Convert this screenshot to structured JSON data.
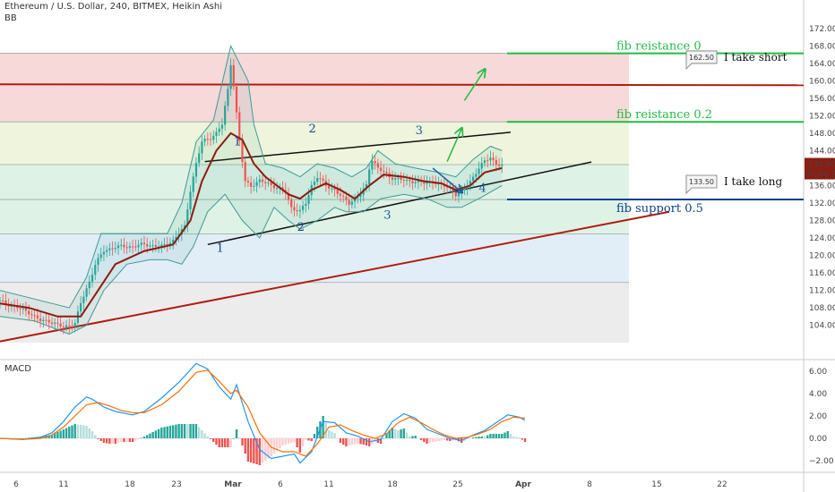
{
  "header": {
    "symbol_line": "Ethereum / U.S. Dollar, 240, BITMEX, Heikin Ashi",
    "indicator": "BB"
  },
  "macd_label": "MACD",
  "colors": {
    "fib_top_band": "#f7d9d9",
    "fib_mid_band": "#eef5dc",
    "fib_low_band": "#dff2e6",
    "fib_lower_band": "#e2eef7",
    "fib_bottom_band": "#ececec",
    "green_level": "#22bb44",
    "blue_level": "#0d3f8c",
    "red_line": "#b01e10",
    "ma_line": "#8b1d12",
    "bb_line": "#3d9a96",
    "candle_up": "#26a69a",
    "candle_down": "#ef5350",
    "macd_line": "#2196f3",
    "signal_line": "#ff6d00"
  },
  "chart_data": [
    {
      "type": "candlestick",
      "title": "Ethereum / U.S. Dollar, 240, BITMEX, Heikin Ashi",
      "ylim": [
        100,
        174
      ],
      "y_ticks": [
        104,
        108,
        112,
        116,
        120,
        124,
        128,
        132,
        136,
        140,
        144,
        148,
        152,
        156,
        160,
        164,
        168,
        172
      ],
      "x_ticks": [
        "6",
        "11",
        "18",
        "23",
        "Mar",
        "6",
        "11",
        "18",
        "25",
        "Apr",
        "8",
        "15",
        "22"
      ],
      "last_price": "140.90",
      "countdown": "02:56:28",
      "price_path": [
        [
          0,
          109.5
        ],
        [
          6,
          108
        ],
        [
          10,
          107
        ],
        [
          14,
          105
        ],
        [
          17,
          105
        ],
        [
          22,
          103.5
        ],
        [
          26,
          104.5
        ],
        [
          28,
          109
        ],
        [
          31,
          114
        ],
        [
          33,
          118
        ],
        [
          36,
          121
        ],
        [
          40,
          122
        ],
        [
          45,
          122
        ],
        [
          50,
          122.5
        ],
        [
          56,
          122
        ],
        [
          60,
          123.5
        ],
        [
          64,
          126.5
        ],
        [
          66,
          135
        ],
        [
          68,
          141
        ],
        [
          70,
          146
        ],
        [
          73,
          147
        ],
        [
          75,
          148
        ],
        [
          77,
          150
        ],
        [
          79,
          158
        ],
        [
          80,
          164
        ],
        [
          81,
          159
        ],
        [
          83,
          146
        ],
        [
          85,
          137
        ],
        [
          87,
          136
        ],
        [
          90,
          137
        ],
        [
          93,
          136.5
        ],
        [
          96,
          135.5
        ],
        [
          99,
          134.5
        ],
        [
          101,
          131
        ],
        [
          104,
          130
        ],
        [
          106,
          132
        ],
        [
          108,
          136
        ],
        [
          110,
          138
        ],
        [
          113,
          136
        ],
        [
          116,
          135
        ],
        [
          119,
          133
        ],
        [
          121,
          132
        ],
        [
          123,
          133
        ],
        [
          125,
          134
        ],
        [
          127,
          136
        ],
        [
          128,
          140
        ],
        [
          129,
          142
        ],
        [
          131,
          140
        ],
        [
          133,
          139
        ],
        [
          135,
          138
        ],
        [
          138,
          137.5
        ],
        [
          141,
          137
        ],
        [
          144,
          137
        ],
        [
          147,
          136.5
        ],
        [
          150,
          137
        ],
        [
          153,
          136
        ],
        [
          156,
          135.5
        ],
        [
          158,
          134
        ],
        [
          160,
          134.5
        ],
        [
          162,
          136
        ],
        [
          164,
          138
        ],
        [
          166,
          140
        ],
        [
          168,
          141.5
        ],
        [
          170,
          142.5
        ],
        [
          172,
          141
        ],
        [
          174,
          140.5
        ]
      ],
      "moving_average": [
        [
          0,
          109
        ],
        [
          10,
          108
        ],
        [
          20,
          106
        ],
        [
          28,
          106
        ],
        [
          34,
          112
        ],
        [
          40,
          118
        ],
        [
          50,
          121
        ],
        [
          60,
          122.5
        ],
        [
          66,
          128
        ],
        [
          70,
          137
        ],
        [
          75,
          144
        ],
        [
          80,
          148
        ],
        [
          84,
          146.5
        ],
        [
          88,
          141
        ],
        [
          92,
          138
        ],
        [
          96,
          136
        ],
        [
          100,
          134
        ],
        [
          104,
          133
        ],
        [
          108,
          135
        ],
        [
          113,
          136.5
        ],
        [
          118,
          135
        ],
        [
          123,
          133
        ],
        [
          128,
          136
        ],
        [
          133,
          138.5
        ],
        [
          140,
          138
        ],
        [
          147,
          137
        ],
        [
          153,
          136.5
        ],
        [
          158,
          135
        ],
        [
          163,
          136
        ],
        [
          168,
          139
        ],
        [
          174,
          140
        ]
      ],
      "bollinger_upper": [
        [
          0,
          112
        ],
        [
          12,
          110
        ],
        [
          24,
          108
        ],
        [
          30,
          115
        ],
        [
          35,
          125
        ],
        [
          42,
          125
        ],
        [
          50,
          125
        ],
        [
          58,
          125
        ],
        [
          63,
          132
        ],
        [
          68,
          146
        ],
        [
          74,
          151
        ],
        [
          80,
          168
        ],
        [
          86,
          160
        ],
        [
          88,
          150
        ],
        [
          92,
          141
        ],
        [
          98,
          140
        ],
        [
          104,
          138
        ],
        [
          110,
          141
        ],
        [
          116,
          140
        ],
        [
          122,
          138
        ],
        [
          127,
          140
        ],
        [
          131,
          144
        ],
        [
          137,
          141
        ],
        [
          144,
          140
        ],
        [
          152,
          139
        ],
        [
          158,
          138
        ],
        [
          164,
          142
        ],
        [
          170,
          145
        ],
        [
          174,
          144
        ]
      ],
      "bollinger_lower": [
        [
          0,
          106
        ],
        [
          12,
          105
        ],
        [
          24,
          102
        ],
        [
          30,
          104
        ],
        [
          36,
          112
        ],
        [
          44,
          118
        ],
        [
          52,
          119
        ],
        [
          58,
          119
        ],
        [
          63,
          118
        ],
        [
          67,
          122
        ],
        [
          72,
          130
        ],
        [
          78,
          134
        ],
        [
          84,
          128
        ],
        [
          90,
          124
        ],
        [
          95,
          131
        ],
        [
          100,
          128
        ],
        [
          104,
          126
        ],
        [
          110,
          128
        ],
        [
          116,
          131
        ],
        [
          120,
          130
        ],
        [
          126,
          130
        ],
        [
          132,
          133
        ],
        [
          140,
          134
        ],
        [
          148,
          133
        ],
        [
          155,
          131
        ],
        [
          160,
          131
        ],
        [
          166,
          133
        ],
        [
          174,
          136
        ]
      ],
      "fib_levels": [
        {
          "name": "fib reistance 0",
          "value": 166.3,
          "label": "fib reistance 0",
          "color": "green"
        },
        {
          "name": "fib reistance 0.2",
          "value": 150.6,
          "label": "fib reistance 0.2",
          "color": "green"
        },
        {
          "name": "level_0.382",
          "value": 140.8,
          "label": "",
          "color": "none"
        },
        {
          "name": "fib support 0.5",
          "value": 132.8,
          "label": "fib support 0.5",
          "color": "blue"
        },
        {
          "name": "level_0.618",
          "value": 124.9,
          "label": "",
          "color": "none"
        },
        {
          "name": "level_0.786",
          "value": 113.8,
          "label": "",
          "color": "none"
        }
      ],
      "red_horizontal": 159.2,
      "trendlines": [
        {
          "role": "channel_upper",
          "x1": 71,
          "y1": 141.5,
          "x2": 177,
          "y2": 148.2
        },
        {
          "role": "channel_lower",
          "x1": 72,
          "y1": 122.5,
          "x2": 205,
          "y2": 141.4
        },
        {
          "role": "long_support",
          "x1": 0,
          "y1": 100.3,
          "x2": 232,
          "y2": 130
        }
      ],
      "wave_labels": [
        {
          "text": "1",
          "x": 81,
          "y": 145.2
        },
        {
          "text": "1",
          "x": 75,
          "y": 120.8
        },
        {
          "text": "2",
          "x": 107,
          "y": 148.2
        },
        {
          "text": "2",
          "x": 103,
          "y": 125.6
        },
        {
          "text": "3",
          "x": 144,
          "y": 147.8
        },
        {
          "text": "3",
          "x": 133,
          "y": 128.4
        },
        {
          "text": "4",
          "x": 166,
          "y": 134.6
        }
      ],
      "callouts": [
        {
          "price": "162.50",
          "text": "I take short",
          "x": 196,
          "y": 165
        },
        {
          "price": "133.50",
          "text": "I take long",
          "x": 196,
          "y": 136.5
        }
      ],
      "arrows": [
        {
          "color": "green",
          "x1": 161,
          "y1": 155.5,
          "x2": 168,
          "y2": 162.5
        },
        {
          "color": "green",
          "x1": 155,
          "y1": 141.5,
          "x2": 160,
          "y2": 149
        },
        {
          "color": "blue",
          "x1": 150,
          "y1": 140,
          "x2": 160,
          "y2": 134.5
        }
      ]
    },
    {
      "type": "macd",
      "title": "MACD",
      "ylim": [
        -3,
        7
      ],
      "y_ticks": [
        -2.0,
        0.0,
        2.0,
        4.0,
        6.0
      ],
      "y_tick_labels": [
        "−2.00",
        "0.00",
        "2.00",
        "4.00",
        "6.00"
      ],
      "macd": [
        [
          0,
          0
        ],
        [
          8,
          -0.1
        ],
        [
          14,
          0.1
        ],
        [
          18,
          0.5
        ],
        [
          22,
          1.5
        ],
        [
          26,
          2.8
        ],
        [
          30,
          3.7
        ],
        [
          32,
          3.5
        ],
        [
          36,
          2.8
        ],
        [
          40,
          2.4
        ],
        [
          46,
          2.1
        ],
        [
          50,
          2.4
        ],
        [
          56,
          3.6
        ],
        [
          62,
          5.0
        ],
        [
          68,
          6.7
        ],
        [
          72,
          6.2
        ],
        [
          76,
          4.6
        ],
        [
          80,
          3.5
        ],
        [
          82,
          4.8
        ],
        [
          86,
          1.5
        ],
        [
          90,
          -1.0
        ],
        [
          94,
          -1.8
        ],
        [
          98,
          -1.6
        ],
        [
          102,
          -1.4
        ],
        [
          104,
          -2.2
        ],
        [
          108,
          -1.2
        ],
        [
          112,
          1.5
        ],
        [
          116,
          1.4
        ],
        [
          120,
          0.5
        ],
        [
          124,
          0.2
        ],
        [
          128,
          -0.3
        ],
        [
          132,
          -0.1
        ],
        [
          136,
          1.5
        ],
        [
          140,
          2.2
        ],
        [
          144,
          1.8
        ],
        [
          148,
          0.8
        ],
        [
          152,
          0.4
        ],
        [
          156,
          0.0
        ],
        [
          160,
          -0.2
        ],
        [
          164,
          0.3
        ],
        [
          168,
          0.7
        ],
        [
          172,
          1.4
        ],
        [
          176,
          2.1
        ],
        [
          180,
          1.9
        ],
        [
          182,
          1.6
        ]
      ],
      "signal": [
        [
          0,
          0
        ],
        [
          8,
          -0.1
        ],
        [
          14,
          0
        ],
        [
          18,
          0.3
        ],
        [
          22,
          1.0
        ],
        [
          26,
          2.0
        ],
        [
          30,
          3.0
        ],
        [
          34,
          3.2
        ],
        [
          38,
          2.9
        ],
        [
          42,
          2.5
        ],
        [
          46,
          2.3
        ],
        [
          50,
          2.3
        ],
        [
          56,
          3.0
        ],
        [
          62,
          4.2
        ],
        [
          68,
          5.9
        ],
        [
          72,
          6.1
        ],
        [
          76,
          5.1
        ],
        [
          80,
          4.0
        ],
        [
          82,
          4.3
        ],
        [
          86,
          2.8
        ],
        [
          90,
          0.5
        ],
        [
          94,
          -0.8
        ],
        [
          98,
          -1.2
        ],
        [
          102,
          -1.2
        ],
        [
          106,
          -1.6
        ],
        [
          110,
          -0.5
        ],
        [
          114,
          1.0
        ],
        [
          118,
          1.2
        ],
        [
          122,
          0.7
        ],
        [
          126,
          0.3
        ],
        [
          130,
          0.0
        ],
        [
          134,
          0.4
        ],
        [
          138,
          1.4
        ],
        [
          142,
          1.9
        ],
        [
          146,
          1.4
        ],
        [
          150,
          0.8
        ],
        [
          154,
          0.3
        ],
        [
          158,
          0.0
        ],
        [
          162,
          0.1
        ],
        [
          166,
          0.4
        ],
        [
          170,
          0.8
        ],
        [
          174,
          1.5
        ],
        [
          178,
          1.9
        ],
        [
          182,
          1.8
        ]
      ]
    }
  ]
}
